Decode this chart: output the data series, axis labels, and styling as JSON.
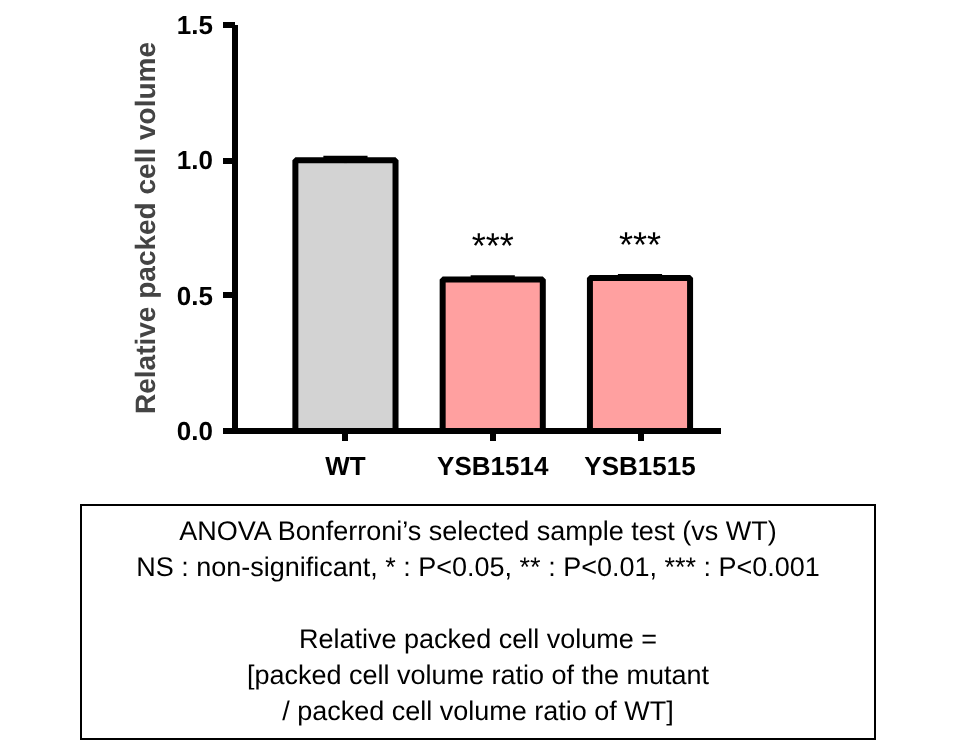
{
  "chart_data": {
    "type": "bar",
    "ylabel": "Relative packed cell volume",
    "categories": [
      "WT",
      "YSB1514",
      "YSB1515"
    ],
    "values": [
      1.0,
      0.56,
      0.565
    ],
    "errors": [
      0.01,
      0.008,
      0.008
    ],
    "colors": [
      "#d3d3d3",
      "#ffa0a0",
      "#ffa0a0"
    ],
    "ylim": [
      0,
      1.5
    ],
    "yticks": [
      {
        "value": 0,
        "label": "0.0"
      },
      {
        "value": 0.5,
        "label": "0.5"
      },
      {
        "value": 1.0,
        "label": "1.0"
      },
      {
        "value": 1.5,
        "label": "1.5"
      }
    ],
    "grid": false,
    "annotations": [
      {
        "text": "***",
        "x": "YSB1514",
        "y": 0.56
      },
      {
        "text": "***",
        "x": "YSB1515",
        "y": 0.565
      },
      "ANOVA Bonferroni’s selected sample test (vs WT)\nNS : non-significant, * : P<0.05, ** : P<0.01, *** : P<0.001",
      "Relative packed cell volume =\n[packed cell volume ratio of the mutant\n/ packed cell volume ratio of WT]"
    ]
  }
}
